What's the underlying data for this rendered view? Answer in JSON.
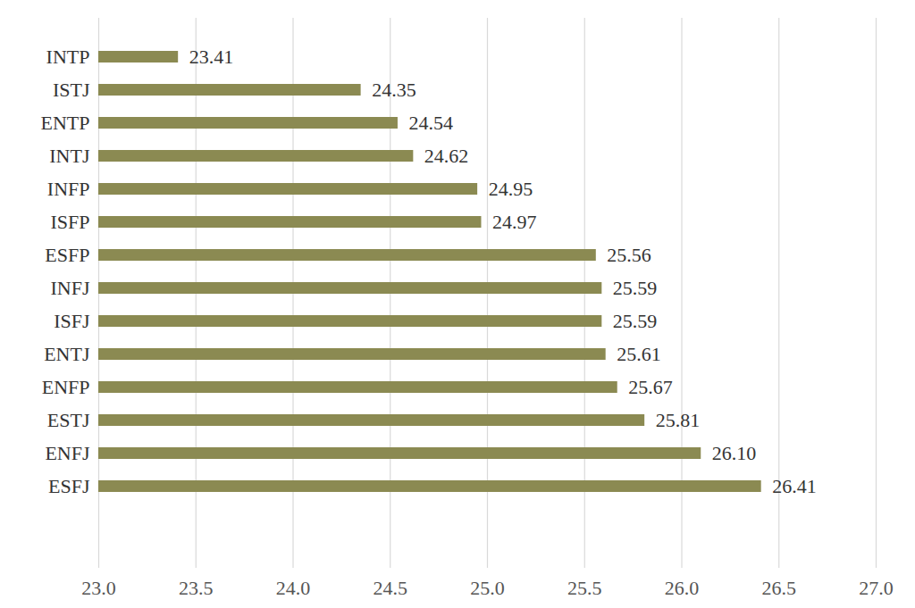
{
  "chart_data": {
    "type": "bar",
    "orientation": "horizontal",
    "categories": [
      "INTP",
      "ISTJ",
      "ENTP",
      "INTJ",
      "INFP",
      "ISFP",
      "ESFP",
      "INFJ",
      "ISFJ",
      "ENTJ",
      "ENFP",
      "ESTJ",
      "ENFJ",
      "ESFJ"
    ],
    "values": [
      23.41,
      24.35,
      24.54,
      24.62,
      24.95,
      24.97,
      25.56,
      25.59,
      25.59,
      25.61,
      25.67,
      25.81,
      26.1,
      26.41
    ],
    "value_labels": [
      "23.41",
      "24.35",
      "24.54",
      "24.62",
      "24.95",
      "24.97",
      "25.56",
      "25.59",
      "25.59",
      "25.61",
      "25.67",
      "25.81",
      "26.10",
      "26.41"
    ],
    "color": "#8b8a52",
    "xlim": [
      23,
      27
    ],
    "xticks": [
      23,
      23.5,
      24,
      24.5,
      25,
      25.5,
      26,
      26.5,
      27
    ],
    "grid": true,
    "data_labels": true
  }
}
